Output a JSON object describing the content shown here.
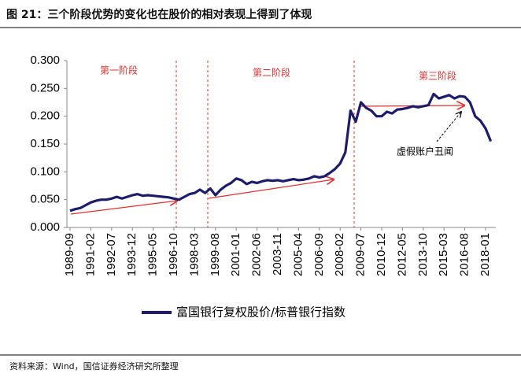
{
  "title": "图 21：三个阶段优势的变化也在股价的相对表现上得到了体现",
  "source": "资料来源：Wind，国信证券经济研究所整理",
  "chart_data": {
    "type": "line",
    "categories": [
      "1989-09",
      null,
      null,
      null,
      "1991-02",
      null,
      null,
      null,
      "1992-07",
      null,
      null,
      null,
      "1993-12",
      null,
      null,
      null,
      "1995-05",
      null,
      null,
      null,
      "1996-10",
      null,
      null,
      null,
      "1998-03",
      null,
      null,
      null,
      "1999-08",
      null,
      null,
      null,
      "2001-01",
      null,
      null,
      null,
      "2002-06",
      null,
      null,
      null,
      "2003-11",
      null,
      null,
      null,
      "2005-04",
      null,
      null,
      null,
      "2006-09",
      null,
      null,
      null,
      "2008-02",
      null,
      null,
      null,
      "2009-07",
      null,
      null,
      null,
      "2010-12",
      null,
      null,
      null,
      "2012-05",
      null,
      null,
      null,
      "2013-10",
      null,
      null,
      null,
      "2015-03",
      null,
      null,
      null,
      "2016-08",
      null,
      null,
      null,
      "2018-01",
      null
    ],
    "series": [
      {
        "name": "富国银行复权股价/标普银行指数",
        "color": "#1c1c6b",
        "values": [
          0.03,
          0.033,
          0.035,
          0.04,
          0.045,
          0.048,
          0.05,
          0.05,
          0.052,
          0.055,
          0.052,
          0.055,
          0.058,
          0.06,
          0.057,
          0.058,
          0.057,
          0.056,
          0.055,
          0.054,
          0.052,
          0.05,
          0.055,
          0.06,
          0.062,
          0.068,
          0.062,
          0.07,
          0.058,
          0.068,
          0.075,
          0.08,
          0.088,
          0.085,
          0.078,
          0.082,
          0.08,
          0.083,
          0.085,
          0.084,
          0.085,
          0.083,
          0.085,
          0.087,
          0.085,
          0.086,
          0.088,
          0.092,
          0.09,
          0.092,
          0.098,
          0.105,
          0.115,
          0.135,
          0.21,
          0.19,
          0.225,
          0.215,
          0.21,
          0.2,
          0.2,
          0.208,
          0.205,
          0.212,
          0.213,
          0.215,
          0.218,
          0.216,
          0.218,
          0.22,
          0.24,
          0.232,
          0.235,
          0.238,
          0.232,
          0.236,
          0.235,
          0.225,
          0.2,
          0.192,
          0.178,
          0.155
        ]
      }
    ],
    "ylim": [
      0,
      0.3
    ],
    "yticks": [
      {
        "value": 0,
        "label": "0.000"
      },
      {
        "value": 0.05,
        "label": "0.050"
      },
      {
        "value": 0.1,
        "label": "0.100"
      },
      {
        "value": 0.15,
        "label": "0.150"
      },
      {
        "value": 0.2,
        "label": "0.200"
      },
      {
        "value": 0.25,
        "label": "0.250"
      },
      {
        "value": 0.3,
        "label": "0.300"
      }
    ],
    "annotations": [
      "第一阶段",
      "第二阶段",
      "第三阶段",
      "虚假账户丑闻"
    ]
  }
}
